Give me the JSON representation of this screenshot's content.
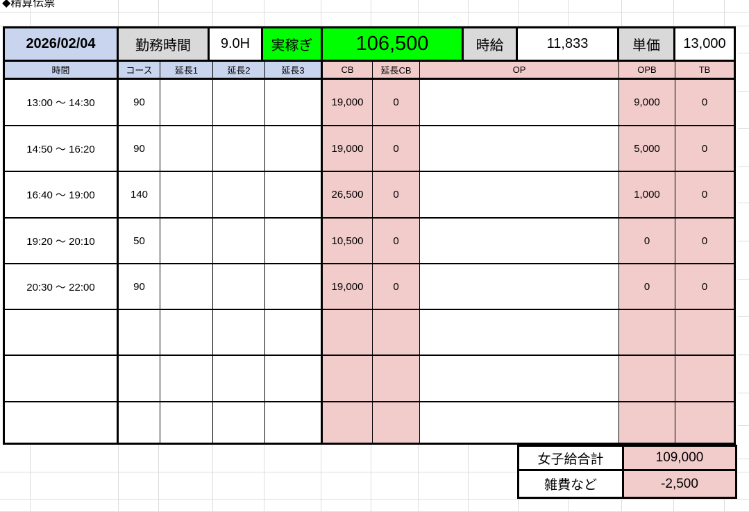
{
  "title": "◆精算伝票",
  "header": {
    "date": "2026/02/04",
    "work_hours_label": "勤務時間",
    "work_hours_value": "9.0H",
    "net_earnings_label": "実稼ぎ",
    "net_earnings_value": "106,500",
    "hourly_wage_label": "時給",
    "hourly_wage_value": "11,833",
    "unit_price_label": "単価",
    "unit_price_value": "13,000"
  },
  "columns": [
    "時間",
    "コース",
    "延長1",
    "延長2",
    "延長3",
    "CB",
    "延長CB",
    "OP",
    "OPB",
    "TB"
  ],
  "rows": [
    {
      "time": "13:00 〜 14:30",
      "course": "90",
      "ext1": "",
      "ext2": "",
      "ext3": "",
      "cb": "19,000",
      "extcb": "0",
      "op": "",
      "opb": "9,000",
      "tb": "0"
    },
    {
      "time": "14:50 〜 16:20",
      "course": "90",
      "ext1": "",
      "ext2": "",
      "ext3": "",
      "cb": "19,000",
      "extcb": "0",
      "op": "",
      "opb": "5,000",
      "tb": "0"
    },
    {
      "time": "16:40 〜 19:00",
      "course": "140",
      "ext1": "",
      "ext2": "",
      "ext3": "",
      "cb": "26,500",
      "extcb": "0",
      "op": "",
      "opb": "1,000",
      "tb": "0"
    },
    {
      "time": "19:20 〜 20:10",
      "course": "50",
      "ext1": "",
      "ext2": "",
      "ext3": "",
      "cb": "10,500",
      "extcb": "0",
      "op": "",
      "opb": "0",
      "tb": "0"
    },
    {
      "time": "20:30 〜 22:00",
      "course": "90",
      "ext1": "",
      "ext2": "",
      "ext3": "",
      "cb": "19,000",
      "extcb": "0",
      "op": "",
      "opb": "0",
      "tb": "0"
    },
    {
      "time": "",
      "course": "",
      "ext1": "",
      "ext2": "",
      "ext3": "",
      "cb": "",
      "extcb": "",
      "op": "",
      "opb": "",
      "tb": ""
    },
    {
      "time": "",
      "course": "",
      "ext1": "",
      "ext2": "",
      "ext3": "",
      "cb": "",
      "extcb": "",
      "op": "",
      "opb": "",
      "tb": ""
    },
    {
      "time": "",
      "course": "",
      "ext1": "",
      "ext2": "",
      "ext3": "",
      "cb": "",
      "extcb": "",
      "op": "",
      "opb": "",
      "tb": ""
    }
  ],
  "totals": {
    "grand_total_label": "女子給合計",
    "grand_total_value": "109,000",
    "expenses_label": "雑費など",
    "expenses_value": "-2,500"
  },
  "colors": {
    "bright_green": "#00ff00",
    "light_pink": "#f2cbcb",
    "light_blue": "#c9d4ee",
    "gray": "#d9d9d9"
  }
}
